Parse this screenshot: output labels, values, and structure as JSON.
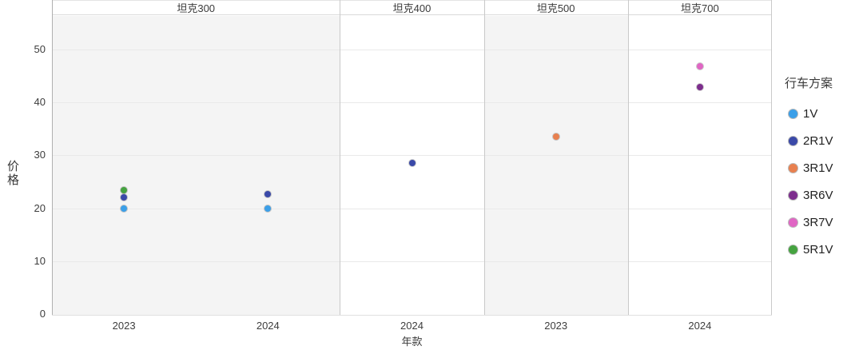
{
  "chart_data": {
    "type": "scatter",
    "title": "",
    "xlabel": "年款",
    "ylabel": "价格",
    "ylim": [
      0,
      50
    ],
    "yticks": [
      0,
      10,
      20,
      30,
      40,
      50
    ],
    "grid": true,
    "legend_position": "right",
    "legend": {
      "title": "行车方案",
      "items": [
        {
          "label": "1V",
          "color": "#3B9FE8"
        },
        {
          "label": "2R1V",
          "color": "#3A49A8"
        },
        {
          "label": "3R1V",
          "color": "#E8804F"
        },
        {
          "label": "3R6V",
          "color": "#7D2E8D"
        },
        {
          "label": "3R7V",
          "color": "#E066C4"
        },
        {
          "label": "5R1V",
          "color": "#45A340"
        }
      ]
    },
    "panels": [
      {
        "title": "坦克300",
        "background": "gray",
        "categories": [
          "2023",
          "2024"
        ],
        "points": [
          {
            "x": "2023",
            "series": "1V",
            "y": 19.9
          },
          {
            "x": "2023",
            "series": "2R1V",
            "y": 22.0
          },
          {
            "x": "2023",
            "series": "5R1V",
            "y": 23.4
          },
          {
            "x": "2024",
            "series": "1V",
            "y": 19.9
          },
          {
            "x": "2024",
            "series": "2R1V",
            "y": 22.7
          }
        ]
      },
      {
        "title": "坦克400",
        "background": "white",
        "categories": [
          "2024"
        ],
        "points": [
          {
            "x": "2024",
            "series": "2R1V",
            "y": 28.6
          }
        ]
      },
      {
        "title": "坦克500",
        "background": "gray",
        "categories": [
          "2023"
        ],
        "points": [
          {
            "x": "2023",
            "series": "3R1V",
            "y": 33.5
          }
        ]
      },
      {
        "title": "坦克700",
        "background": "white",
        "categories": [
          "2024"
        ],
        "points": [
          {
            "x": "2024",
            "series": "3R6V",
            "y": 42.9
          },
          {
            "x": "2024",
            "series": "3R7V",
            "y": 46.9
          }
        ]
      }
    ],
    "panel_colors": {
      "gray": "#f4f4f4",
      "white": "#ffffff"
    }
  }
}
